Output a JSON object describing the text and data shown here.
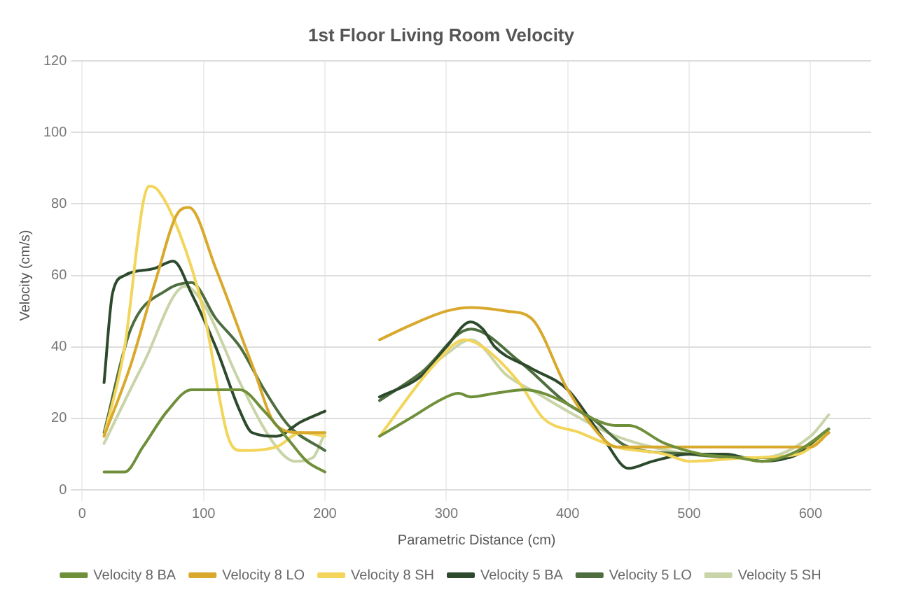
{
  "chart_data": {
    "type": "line",
    "title": "1st Floor Living Room Velocity",
    "xlabel": "Parametric Distance (cm)",
    "ylabel": "Velocity (cm/s)",
    "xlim": [
      0,
      650
    ],
    "xticks": [
      0,
      100,
      200,
      300,
      400,
      500,
      600
    ],
    "ylim": [
      0,
      120
    ],
    "yticks": [
      0,
      20,
      40,
      60,
      80,
      100,
      120
    ],
    "grid": true,
    "legend": "bottom",
    "marker": "none",
    "line_style": "solid",
    "series": [
      {
        "name": "Velocity 8 BA",
        "color": "#6f8f3a",
        "x": [
          18,
          35,
          50,
          70,
          90,
          110,
          130,
          150,
          170,
          185,
          200,
          222,
          245,
          270,
          300,
          310,
          320,
          340,
          365,
          380,
          400,
          420,
          440,
          450,
          480,
          510,
          540,
          560,
          590,
          615
        ],
        "values": [
          5,
          5,
          12,
          22,
          28,
          28,
          28,
          22,
          14,
          8,
          5,
          null,
          15,
          20,
          26,
          27,
          26,
          27,
          28,
          27,
          24,
          20,
          18,
          18,
          13,
          10,
          9,
          8,
          11,
          17
        ]
      },
      {
        "name": "Velocity 8 LO",
        "color": "#d9a92e",
        "x": [
          18,
          40,
          60,
          80,
          88,
          110,
          140,
          160,
          180,
          200,
          222,
          245,
          270,
          300,
          320,
          350,
          370,
          400,
          430,
          440,
          500,
          560,
          600,
          615
        ],
        "values": [
          15,
          35,
          58,
          78,
          79,
          62,
          35,
          18,
          16,
          16,
          null,
          42,
          46,
          50,
          51,
          50,
          48,
          28,
          14,
          12,
          12,
          12,
          12,
          16
        ]
      },
      {
        "name": "Velocity 8 SH",
        "color": "#f2d55a",
        "x": [
          18,
          35,
          50,
          55,
          62,
          80,
          100,
          120,
          130,
          160,
          180,
          200,
          222,
          245,
          290,
          315,
          330,
          360,
          380,
          410,
          440,
          480,
          500,
          550,
          590,
          615
        ],
        "values": [
          15,
          40,
          80,
          85,
          84,
          72,
          50,
          15,
          11,
          12,
          16,
          15,
          null,
          15,
          35,
          42,
          40,
          30,
          20,
          16,
          12,
          10,
          8,
          9,
          10,
          16
        ]
      },
      {
        "name": "Velocity 5 BA",
        "color": "#2d4a2d",
        "x": [
          18,
          25,
          35,
          60,
          75,
          90,
          110,
          130,
          140,
          160,
          180,
          200,
          222,
          245,
          280,
          300,
          320,
          330,
          340,
          370,
          400,
          430,
          450,
          470,
          500,
          530,
          560,
          590,
          615
        ],
        "values": [
          30,
          55,
          60,
          62,
          64,
          55,
          40,
          22,
          16,
          15,
          19,
          22,
          null,
          26,
          32,
          40,
          47,
          45,
          40,
          34,
          28,
          14,
          6,
          8,
          10,
          10,
          8,
          10,
          16
        ]
      },
      {
        "name": "Velocity 5 LO",
        "color": "#4f6e40",
        "x": [
          18,
          40,
          70,
          90,
          110,
          130,
          150,
          170,
          200,
          222,
          245,
          280,
          320,
          360,
          400,
          420,
          450,
          500,
          540,
          580,
          615
        ],
        "values": [
          16,
          45,
          56,
          58,
          48,
          40,
          28,
          18,
          11,
          null,
          25,
          33,
          45,
          36,
          24,
          20,
          12,
          10,
          9,
          9,
          17
        ]
      },
      {
        "name": "Velocity 5 SH",
        "color": "#c9d4a8",
        "x": [
          18,
          50,
          85,
          100,
          130,
          160,
          175,
          190,
          200,
          222,
          245,
          270,
          300,
          320,
          350,
          375,
          400,
          440,
          500,
          560,
          600,
          615
        ],
        "values": [
          13,
          35,
          57,
          52,
          30,
          12,
          8,
          9,
          16,
          null,
          26,
          30,
          38,
          42,
          32,
          27,
          22,
          15,
          10,
          9,
          15,
          21
        ]
      }
    ]
  }
}
